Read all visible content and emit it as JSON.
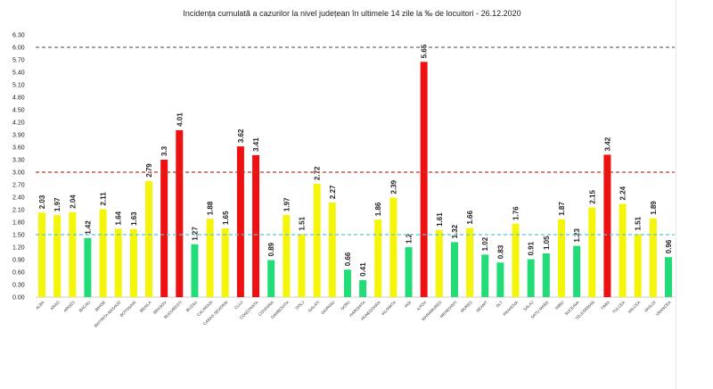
{
  "chart_data": {
    "type": "bar",
    "title": "Incidența cumulată a cazurilor la nivel județean în ultimele 14 zile   la ‰ de locuitori  - 26.12.2020",
    "xlabel": "",
    "ylabel": "",
    "ylim": [
      0,
      6.3
    ],
    "yticks": [
      "0.00",
      "0.30",
      "0.60",
      "0.90",
      "1.20",
      "1.50",
      "1.80",
      "2.10",
      "2.40",
      "2.70",
      "3.00",
      "3.30",
      "3.60",
      "3.90",
      "4.20",
      "4.50",
      "4.80",
      "5.10",
      "5.40",
      "5.70",
      "6.00",
      "6.30"
    ],
    "categories": [
      "ALBA",
      "ARAD",
      "ARGES",
      "BACAU",
      "BIHOR",
      "BISTRITA NASAUD",
      "BOTOSANI",
      "BRAILA",
      "BRASOV",
      "BUCURESTI",
      "BUZAU",
      "CALARASI",
      "CARAS SEVERIN",
      "CLUJ",
      "CONSTANTA",
      "COVASNA",
      "DAMBOVITA",
      "DOLJ",
      "GALATI",
      "GIURGIU",
      "GORJ",
      "HARGHITA",
      "HUNEDOARA",
      "IALOMITA",
      "IASI",
      "ILFOV",
      "MARAMURES",
      "MEHEDINTI",
      "MURES",
      "NEAMT",
      "OLT",
      "PRAHOVA",
      "SALAJ",
      "SATU MARE",
      "SIBIU",
      "SUCEAVA",
      "TELEORMAN",
      "TIMIS",
      "TULCEA",
      "VALCEA",
      "VASLUI",
      "VRANCEA"
    ],
    "values": [
      2.03,
      1.97,
      2.04,
      1.42,
      2.11,
      1.64,
      1.63,
      2.79,
      3.3,
      4.01,
      1.27,
      1.88,
      1.65,
      3.62,
      3.41,
      0.89,
      1.97,
      1.51,
      2.72,
      2.27,
      0.66,
      0.41,
      1.86,
      2.39,
      1.2,
      5.65,
      1.61,
      1.32,
      1.66,
      1.02,
      0.83,
      1.76,
      0.91,
      1.05,
      1.87,
      1.23,
      2.15,
      3.42,
      2.24,
      1.51,
      1.89,
      0.96
    ],
    "value_labels": [
      "2.03",
      "1.97",
      "2.04",
      "1.42",
      "2.11",
      "1.64",
      "1.63",
      "2.79",
      "3.3",
      "4.01",
      "1.27",
      "1.88",
      "1.65",
      "3.62",
      "3.41",
      "0.89",
      "1.97",
      "1.51",
      "2.72",
      "2.27",
      "0.66",
      "0.41",
      "1.86",
      "2.39",
      "1.2",
      "5.65",
      "1.61",
      "1.32",
      "1.66",
      "1.02",
      "0.83",
      "1.76",
      "0.91",
      "1.05",
      "1.87",
      "1.23",
      "2.15",
      "3.42",
      "2.24",
      "1.51",
      "1.89",
      "0.96"
    ],
    "thresholds": [
      {
        "value": 6.0,
        "color": "#6a6a7a"
      },
      {
        "value": 3.0,
        "color": "#c0392b"
      },
      {
        "value": 1.5,
        "color": "#5bc0de"
      }
    ],
    "colors": {
      "low": "#22dd77",
      "mid": "#f5f50a",
      "high": "#ee1111"
    },
    "grid": false,
    "legend": "none"
  }
}
